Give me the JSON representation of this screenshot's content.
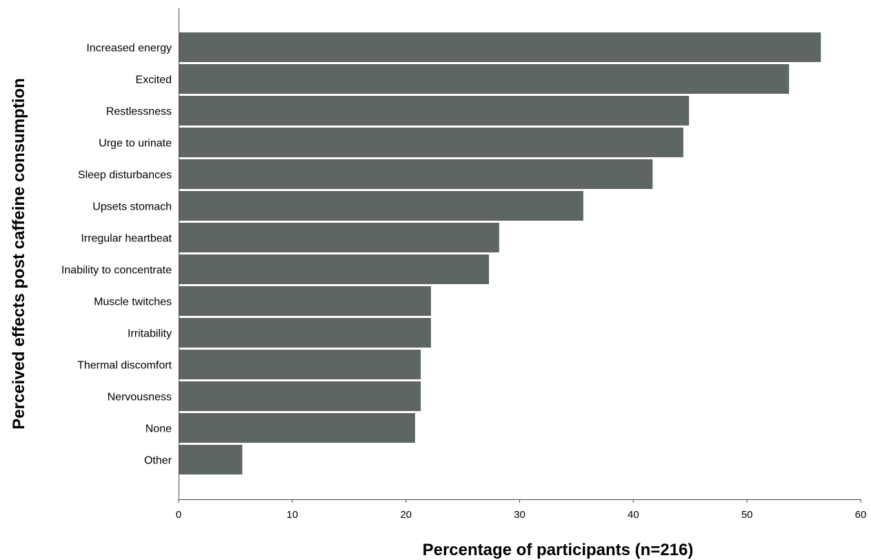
{
  "chart_data": {
    "type": "bar",
    "orientation": "horizontal",
    "categories": [
      "Increased energy",
      "Excited",
      "Restlessness",
      "Urge to urinate",
      "Sleep disturbances",
      "Upsets stomach",
      "Irregular heartbeat",
      "Inability to concentrate",
      "Muscle twitches",
      "Irritability",
      "Thermal discomfort",
      "Nervousness",
      "None",
      "Other"
    ],
    "values": [
      56.5,
      53.7,
      44.9,
      44.4,
      41.7,
      35.6,
      28.2,
      27.3,
      22.2,
      22.2,
      21.3,
      21.3,
      20.8,
      5.6
    ],
    "title": "",
    "xlabel": "Percentage of participants (n=216)",
    "ylabel": "Perceived effects post caffeine consumption",
    "xlim": [
      0,
      60
    ],
    "xticks": [
      "0",
      "10",
      "20",
      "30",
      "40",
      "50",
      "60"
    ],
    "grid": false,
    "legend": "none",
    "bar_color": "#5d6661"
  }
}
